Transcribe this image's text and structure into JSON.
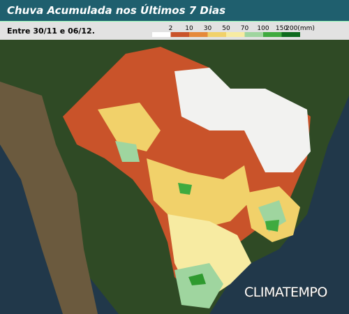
{
  "header": {
    "title": "Chuva Acumulada nos Últimos 7 Dias",
    "subtitle": "Entre 30/11 e 06/12."
  },
  "legend": {
    "labels": [
      "2",
      "10",
      "30",
      "50",
      "70",
      "100",
      "150",
      "200(mm)"
    ],
    "colors": [
      "#ffffff",
      "#c9532a",
      "#e5893a",
      "#f1d16a",
      "#f7eba2",
      "#9fd59f",
      "#3faa3f",
      "#0e6a1e"
    ]
  },
  "brand": "CLIMATEMPO"
}
